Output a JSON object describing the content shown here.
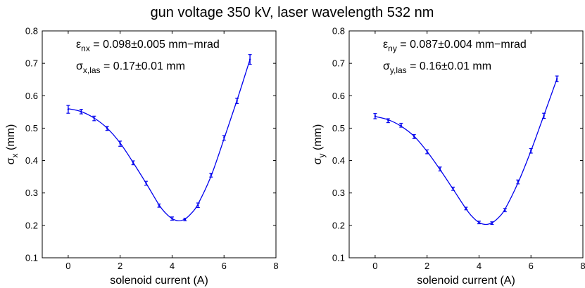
{
  "figure": {
    "title": "gun voltage 350 kV, laser wavelength 532 nm"
  },
  "chart_data": [
    {
      "type": "scatter",
      "xlabel": "solenoid current (A)",
      "ylabel": {
        "main": "σ",
        "sub": "x",
        "unit": " (mm)"
      },
      "xlim": [
        -1,
        8
      ],
      "ylim": [
        0.1,
        0.8
      ],
      "xticks": [
        0,
        2,
        4,
        6,
        8
      ],
      "yticks": [
        0.1,
        0.2,
        0.3,
        0.4,
        0.5,
        0.6,
        0.7,
        0.8
      ],
      "grid": false,
      "color": "#0000ee",
      "annotations": [
        {
          "main": "ε",
          "sub": "nx",
          "rest": " = 0.098±0.005 mm−mrad"
        },
        {
          "main": "σ",
          "sub": "x,las",
          "rest": " = 0.17±0.01 mm"
        }
      ],
      "points": [
        {
          "x": 0,
          "y": 0.558,
          "err": 0.012
        },
        {
          "x": 0.5,
          "y": 0.551,
          "err": 0.007
        },
        {
          "x": 1,
          "y": 0.53,
          "err": 0.007
        },
        {
          "x": 1.5,
          "y": 0.499,
          "err": 0.006
        },
        {
          "x": 2,
          "y": 0.452,
          "err": 0.008
        },
        {
          "x": 2.5,
          "y": 0.393,
          "err": 0.006
        },
        {
          "x": 3,
          "y": 0.33,
          "err": 0.006
        },
        {
          "x": 3.5,
          "y": 0.261,
          "err": 0.005
        },
        {
          "x": 4,
          "y": 0.221,
          "err": 0.005
        },
        {
          "x": 4.5,
          "y": 0.218,
          "err": 0.004
        },
        {
          "x": 5,
          "y": 0.262,
          "err": 0.007
        },
        {
          "x": 5.5,
          "y": 0.355,
          "err": 0.006
        },
        {
          "x": 6,
          "y": 0.47,
          "err": 0.007
        },
        {
          "x": 6.5,
          "y": 0.584,
          "err": 0.008
        },
        {
          "x": 7,
          "y": 0.712,
          "err": 0.015
        }
      ],
      "fit": {
        "x": [
          0,
          0.5,
          1,
          1.5,
          2,
          2.5,
          3,
          3.5,
          3.75,
          4,
          4.25,
          4.5,
          4.75,
          5,
          5.5,
          6,
          6.5,
          7
        ],
        "y": [
          0.56,
          0.551,
          0.531,
          0.5,
          0.454,
          0.394,
          0.33,
          0.263,
          0.238,
          0.221,
          0.214,
          0.22,
          0.238,
          0.266,
          0.352,
          0.467,
          0.586,
          0.712
        ]
      }
    },
    {
      "type": "scatter",
      "xlabel": "solenoid current (A)",
      "ylabel": {
        "main": "σ",
        "sub": "y",
        "unit": " (mm)"
      },
      "xlim": [
        -1,
        8
      ],
      "ylim": [
        0.1,
        0.8
      ],
      "xticks": [
        0,
        2,
        4,
        6,
        8
      ],
      "yticks": [
        0.1,
        0.2,
        0.3,
        0.4,
        0.5,
        0.6,
        0.7,
        0.8
      ],
      "grid": false,
      "color": "#0000ee",
      "annotations": [
        {
          "main": "ε",
          "sub": "ny",
          "rest": " = 0.087±0.004 mm−mrad"
        },
        {
          "main": "σ",
          "sub": "y,las",
          "rest": " = 0.16±0.01 mm"
        }
      ],
      "points": [
        {
          "x": 0,
          "y": 0.537,
          "err": 0.008
        },
        {
          "x": 0.5,
          "y": 0.523,
          "err": 0.006
        },
        {
          "x": 1,
          "y": 0.509,
          "err": 0.006
        },
        {
          "x": 1.5,
          "y": 0.474,
          "err": 0.006
        },
        {
          "x": 2,
          "y": 0.427,
          "err": 0.006
        },
        {
          "x": 2.5,
          "y": 0.374,
          "err": 0.006
        },
        {
          "x": 3,
          "y": 0.313,
          "err": 0.005
        },
        {
          "x": 3.5,
          "y": 0.252,
          "err": 0.004
        },
        {
          "x": 4,
          "y": 0.209,
          "err": 0.004
        },
        {
          "x": 4.5,
          "y": 0.207,
          "err": 0.004
        },
        {
          "x": 5,
          "y": 0.247,
          "err": 0.005
        },
        {
          "x": 5.5,
          "y": 0.334,
          "err": 0.006
        },
        {
          "x": 6,
          "y": 0.43,
          "err": 0.007
        },
        {
          "x": 6.5,
          "y": 0.538,
          "err": 0.008
        },
        {
          "x": 7,
          "y": 0.652,
          "err": 0.009
        }
      ],
      "fit": {
        "x": [
          0,
          0.5,
          1,
          1.5,
          2,
          2.5,
          3,
          3.5,
          3.75,
          4,
          4.25,
          4.5,
          4.75,
          5,
          5.5,
          6,
          6.5,
          7
        ],
        "y": [
          0.536,
          0.526,
          0.506,
          0.475,
          0.428,
          0.372,
          0.312,
          0.251,
          0.226,
          0.209,
          0.203,
          0.208,
          0.224,
          0.25,
          0.331,
          0.43,
          0.54,
          0.652
        ]
      }
    }
  ]
}
